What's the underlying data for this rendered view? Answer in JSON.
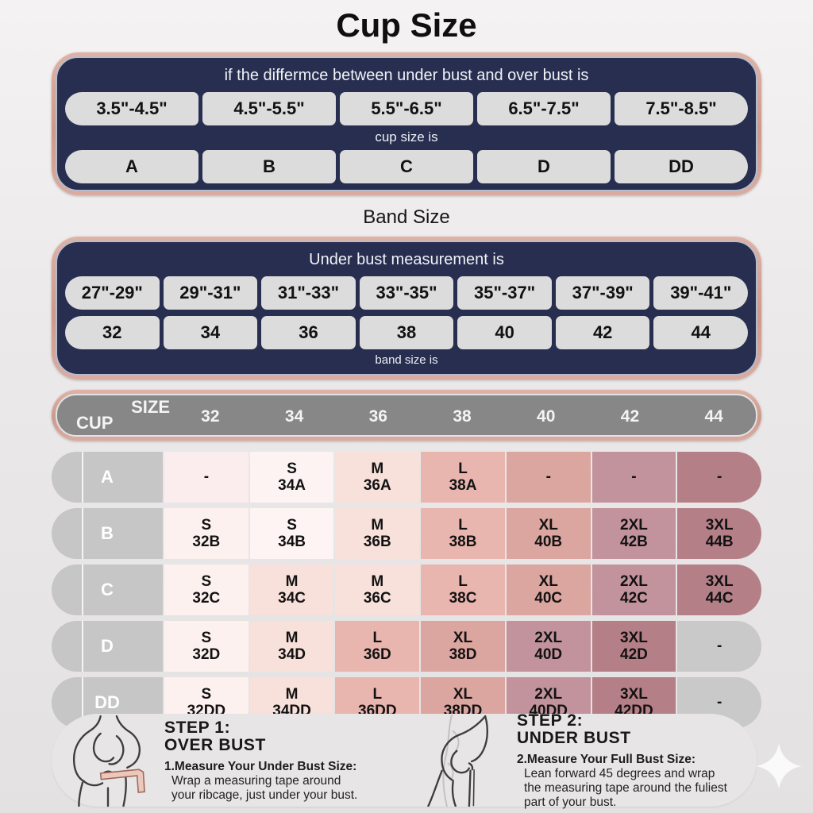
{
  "page": {
    "title": "Cup Size"
  },
  "cup_box": {
    "header": "if the differmce between under bust and over bust is",
    "ranges": [
      "3.5\"-4.5\"",
      "4.5\"-5.5\"",
      "5.5\"-6.5\"",
      "6.5\"-7.5\"",
      "7.5\"-8.5\""
    ],
    "middle": "cup size is",
    "cups": [
      "A",
      "B",
      "C",
      "D",
      "DD"
    ]
  },
  "band": {
    "title": "Band Size",
    "header": "Under bust measurement is",
    "ranges": [
      "27\"-29\"",
      "29\"-31\"",
      "31\"-33\"",
      "33\"-35\"",
      "35\"-37\"",
      "37\"-39\"",
      "39\"-41\""
    ],
    "sizes": [
      "32",
      "34",
      "36",
      "38",
      "40",
      "42",
      "44"
    ],
    "footer": "band size is"
  },
  "matrix": {
    "corner_top": "SIZE",
    "corner_bottom": "CUP",
    "columns": [
      "32",
      "34",
      "36",
      "38",
      "40",
      "42",
      "44"
    ],
    "rows": [
      {
        "cup": "A",
        "cells": [
          {
            "size": "-",
            "code": "",
            "bg": "#fbedee"
          },
          {
            "size": "S",
            "code": "34A",
            "bg": "#fdf3f3"
          },
          {
            "size": "M",
            "code": "36A",
            "bg": "#f8e0db"
          },
          {
            "size": "L",
            "code": "38A",
            "bg": "#e9b5af"
          },
          {
            "size": "-",
            "code": "",
            "bg": "#dba5a0"
          },
          {
            "size": "-",
            "code": "",
            "bg": "#c3939d"
          },
          {
            "size": "-",
            "code": "",
            "bg": "#b57f88"
          }
        ]
      },
      {
        "cup": "B",
        "cells": [
          {
            "size": "S",
            "code": "32B",
            "bg": "#fdf1f0"
          },
          {
            "size": "S",
            "code": "34B",
            "bg": "#fdf4f3"
          },
          {
            "size": "M",
            "code": "36B",
            "bg": "#f8e0db"
          },
          {
            "size": "L",
            "code": "38B",
            "bg": "#e9b5af"
          },
          {
            "size": "XL",
            "code": "40B",
            "bg": "#dba5a0"
          },
          {
            "size": "2XL",
            "code": "42B",
            "bg": "#c3939d"
          },
          {
            "size": "3XL",
            "code": "44B",
            "bg": "#b57f88"
          }
        ]
      },
      {
        "cup": "C",
        "cells": [
          {
            "size": "S",
            "code": "32C",
            "bg": "#fdf1f0"
          },
          {
            "size": "M",
            "code": "34C",
            "bg": "#f8e0db"
          },
          {
            "size": "M",
            "code": "36C",
            "bg": "#f8e0db"
          },
          {
            "size": "L",
            "code": "38C",
            "bg": "#e9b5af"
          },
          {
            "size": "XL",
            "code": "40C",
            "bg": "#dba5a0"
          },
          {
            "size": "2XL",
            "code": "42C",
            "bg": "#c3939d"
          },
          {
            "size": "3XL",
            "code": "44C",
            "bg": "#b57f88"
          }
        ]
      },
      {
        "cup": "D",
        "cells": [
          {
            "size": "S",
            "code": "32D",
            "bg": "#fdf1f0"
          },
          {
            "size": "M",
            "code": "34D",
            "bg": "#f8e0db"
          },
          {
            "size": "L",
            "code": "36D",
            "bg": "#e9b5af"
          },
          {
            "size": "XL",
            "code": "38D",
            "bg": "#dba5a0"
          },
          {
            "size": "2XL",
            "code": "40D",
            "bg": "#c3939d"
          },
          {
            "size": "3XL",
            "code": "42D",
            "bg": "#b57f88"
          },
          {
            "size": "-",
            "code": "",
            "bg": "#c9c9c9"
          }
        ]
      },
      {
        "cup": "DD",
        "cells": [
          {
            "size": "S",
            "code": "32DD",
            "bg": "#fdf1f0"
          },
          {
            "size": "M",
            "code": "34DD",
            "bg": "#f8e0db"
          },
          {
            "size": "L",
            "code": "36DD",
            "bg": "#e9b5af"
          },
          {
            "size": "XL",
            "code": "38DD",
            "bg": "#dba5a0"
          },
          {
            "size": "2XL",
            "code": "40DD",
            "bg": "#c3939d"
          },
          {
            "size": "3XL",
            "code": "42DD",
            "bg": "#b57f88"
          },
          {
            "size": "-",
            "code": "",
            "bg": "#c9c9c9"
          }
        ]
      }
    ]
  },
  "steps": [
    {
      "title1": "STEP 1:",
      "title2": "OVER BUST",
      "lead": "1.Measure Your Under Bust Size:",
      "lines": [
        "Wrap a measuring tape around",
        "your ribcage, just under your bust."
      ]
    },
    {
      "title1": "STEP 2:",
      "title2": "UNDER BUST",
      "lead": "2.Measure Your Full Bust Size:",
      "lines": [
        "Lean forward 45 degrees and wrap",
        "the measuring tape around the fuliest",
        "part of your bust."
      ]
    }
  ],
  "colors": {
    "navy": "#272e50",
    "frame_rose": "#cd998c",
    "pill_gray": "#dcdcdc",
    "header_gray": "#878787",
    "label_gray": "#c6c6c6",
    "size_s": "#fdf1f0",
    "size_m": "#f8e0db",
    "size_l": "#e9b5af",
    "size_xl": "#dba5a0",
    "size_2xl": "#c3939d",
    "size_3xl": "#b57f88",
    "na_gray": "#c9c9c9",
    "tape_rose": "#cf9384"
  }
}
